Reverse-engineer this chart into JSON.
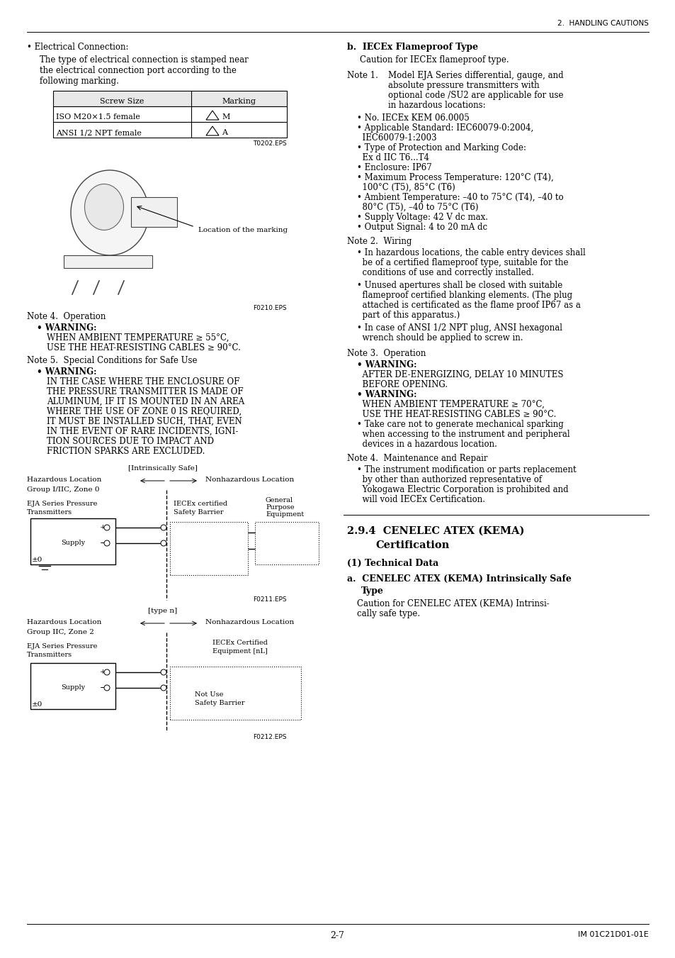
{
  "page_header": "2.  HANDLING CAUTIONS",
  "page_footer_left": "2-7",
  "page_footer_right": "IM 01C21D01-01E",
  "bg_color": "#ffffff",
  "figw": 9.54,
  "figh": 13.51,
  "dpi": 100
}
